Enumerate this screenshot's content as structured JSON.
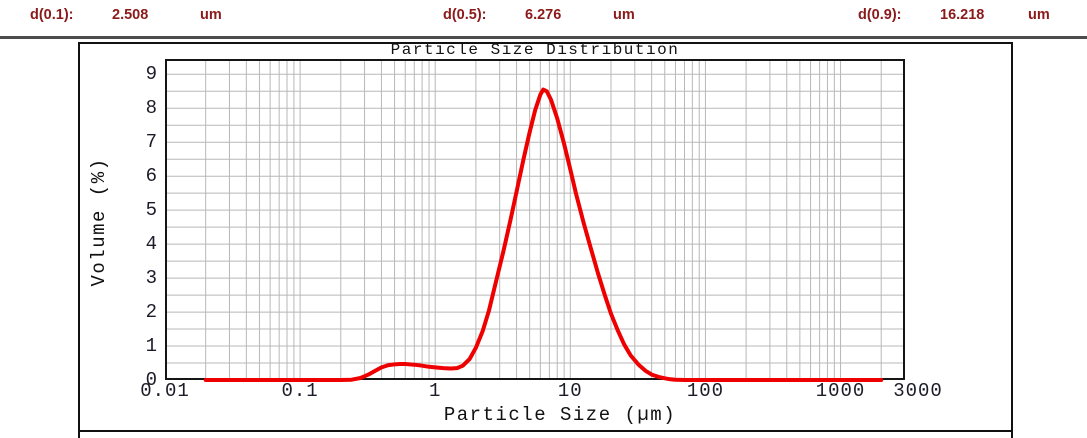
{
  "header": {
    "text_color": "#8B1A1A",
    "items": [
      {
        "label": "d(0.1):",
        "value": "2.508",
        "unit": "um"
      },
      {
        "label": "d(0.5):",
        "value": "6.276",
        "unit": "um"
      },
      {
        "label": "d(0.9):",
        "value": "16.218",
        "unit": "um"
      }
    ]
  },
  "chart_data": {
    "type": "line",
    "title": "Particle Size Distribution",
    "xlabel": "Particle Size (µm)",
    "ylabel": "Volume (%)",
    "x_scale": "log",
    "xlim": [
      0.01,
      3000
    ],
    "ylim": [
      0,
      9.45
    ],
    "x_tick_values": [
      0.01,
      0.1,
      1,
      10,
      100,
      1000,
      3000
    ],
    "x_tick_labels": [
      "0.01",
      "0.1",
      "1",
      "10",
      "100",
      "1000",
      "3000"
    ],
    "y_tick_values": [
      0,
      1,
      2,
      3,
      4,
      5,
      6,
      7,
      8,
      9
    ],
    "y_tick_labels": [
      "0",
      "1",
      "2",
      "3",
      "4",
      "5",
      "6",
      "7",
      "8",
      "9"
    ],
    "grid": true,
    "grid_color": "#b8b8b8",
    "border_color": "#151515",
    "line_color": "#ee0000",
    "line_width": 4,
    "series": [
      {
        "name": "Volume",
        "x": [
          0.02,
          0.05,
          0.1,
          0.15,
          0.2,
          0.24,
          0.28,
          0.32,
          0.36,
          0.4,
          0.45,
          0.5,
          0.55,
          0.6,
          0.7,
          0.8,
          0.9,
          1.0,
          1.15,
          1.3,
          1.45,
          1.6,
          1.8,
          2.0,
          2.25,
          2.5,
          2.8,
          3.2,
          3.6,
          4.0,
          4.5,
          5.0,
          5.5,
          6.0,
          6.3,
          6.7,
          7.2,
          8.0,
          9.0,
          10.0,
          11.0,
          12.5,
          14.0,
          16.0,
          18.0,
          20.0,
          22.5,
          25.0,
          28.0,
          32.0,
          36.0,
          40.0,
          45.0,
          50.0,
          55.0,
          60.0,
          70.0,
          85.0,
          100,
          150,
          250,
          500,
          1000,
          1500,
          2000
        ],
        "y": [
          0,
          0,
          0,
          0,
          0,
          0.01,
          0.06,
          0.16,
          0.27,
          0.37,
          0.44,
          0.46,
          0.47,
          0.47,
          0.45,
          0.42,
          0.39,
          0.37,
          0.35,
          0.34,
          0.35,
          0.42,
          0.62,
          0.95,
          1.45,
          2.05,
          2.85,
          3.8,
          4.7,
          5.55,
          6.5,
          7.3,
          7.95,
          8.4,
          8.55,
          8.5,
          8.25,
          7.7,
          6.95,
          6.2,
          5.5,
          4.65,
          3.95,
          3.15,
          2.5,
          1.95,
          1.45,
          1.05,
          0.72,
          0.45,
          0.27,
          0.16,
          0.09,
          0.05,
          0.02,
          0.01,
          0,
          0,
          0,
          0,
          0,
          0,
          0,
          0,
          0
        ]
      }
    ]
  }
}
